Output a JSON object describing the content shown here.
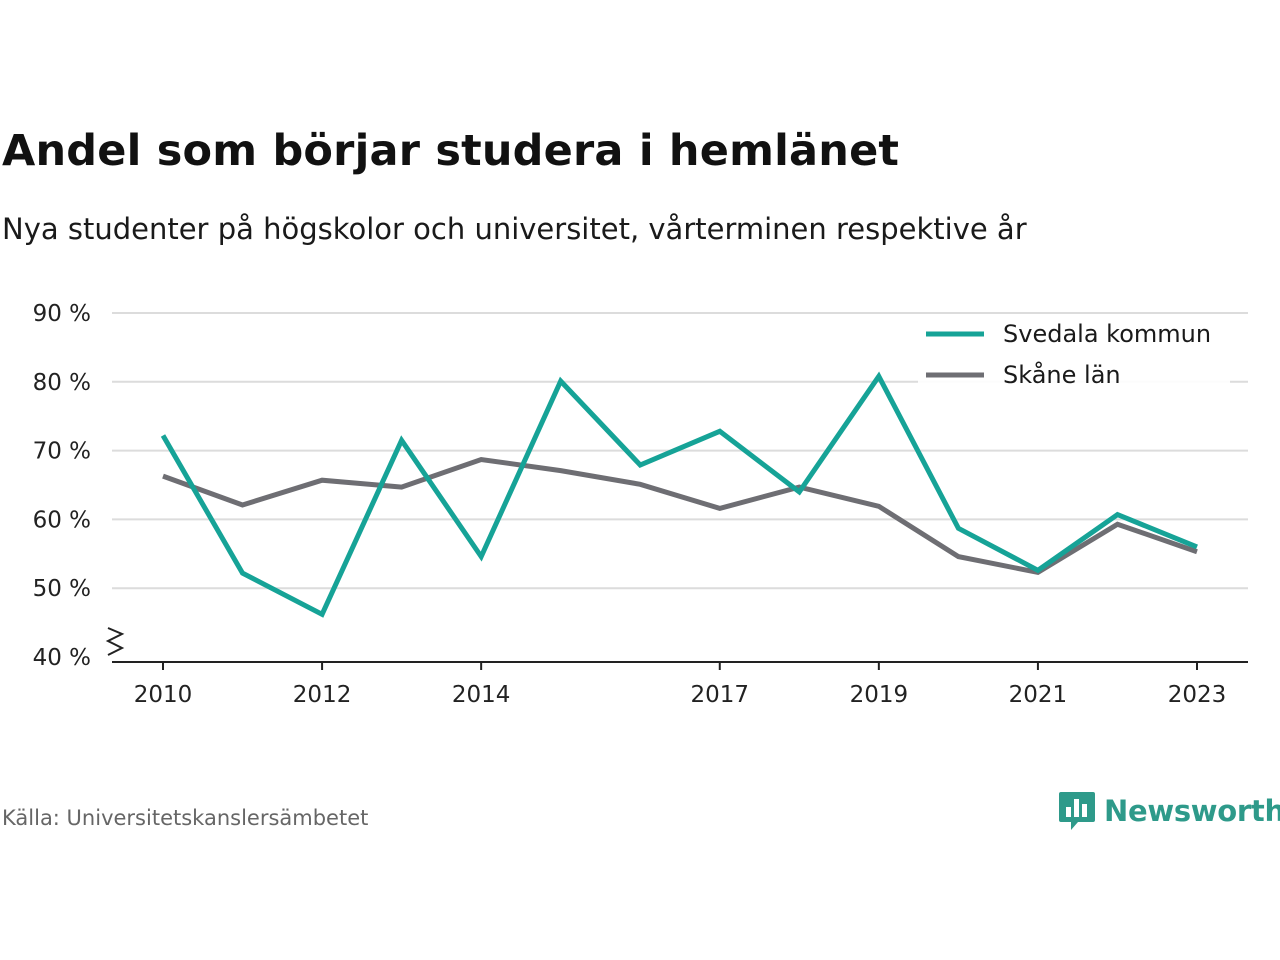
{
  "title": "Andel som börjar studera i hemlänet",
  "subtitle": "Nya studenter på högskolor och universitet, vårterminen respektive år",
  "source": "Källa: Universitetskanslersämbetet",
  "brand": {
    "name": "Newsworthy",
    "icon": "newsworthy-logo-icon",
    "color": "#2e9a8a"
  },
  "chart_data": {
    "type": "line",
    "x": [
      2010,
      2011,
      2012,
      2013,
      2014,
      2015,
      2016,
      2017,
      2018,
      2019,
      2020,
      2021,
      2022,
      2023
    ],
    "series": [
      {
        "name": "Svedala kommun",
        "color": "#16a397",
        "values": [
          72.2,
          52.2,
          46.2,
          71.5,
          54.6,
          80.1,
          67.9,
          72.8,
          64.0,
          80.8,
          58.7,
          52.6,
          60.7,
          56.0
        ]
      },
      {
        "name": "Skåne län",
        "color": "#6e6e73",
        "values": [
          66.3,
          62.1,
          65.7,
          64.7,
          68.7,
          67.1,
          65.1,
          61.6,
          64.7,
          61.9,
          54.6,
          52.3,
          59.3,
          55.3
        ]
      }
    ],
    "x_ticks": [
      2010,
      2012,
      2014,
      2017,
      2019,
      2021,
      2023
    ],
    "x_tick_labels": [
      "2010",
      "2012",
      "2014",
      "2017",
      "2019",
      "2021",
      "2023"
    ],
    "y_ticks": [
      40,
      50,
      60,
      70,
      80,
      90
    ],
    "y_tick_labels": [
      "40 %",
      "50 %",
      "60 %",
      "70 %",
      "80 %",
      "90 %"
    ],
    "ylim": [
      40,
      90
    ],
    "xlim": [
      2010,
      2023
    ],
    "axis_break": true,
    "grid": true,
    "legend": "top-right"
  }
}
